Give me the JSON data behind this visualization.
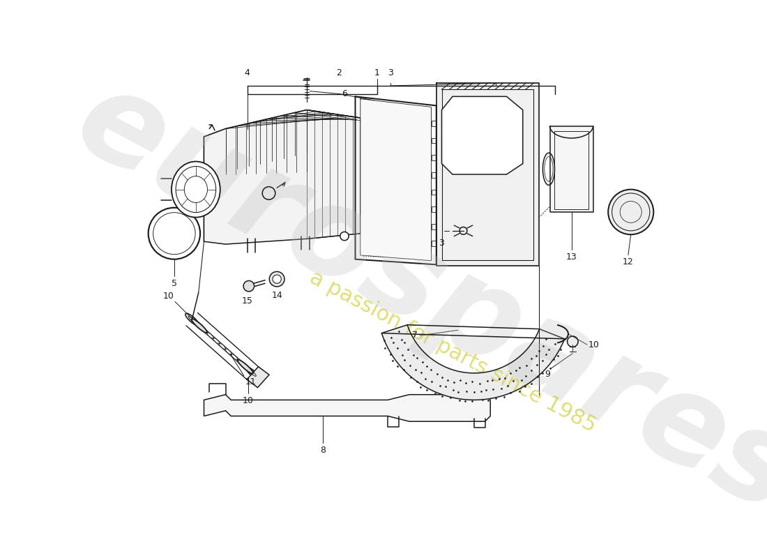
{
  "bg_color": "#ffffff",
  "line_color": "#1a1a1a",
  "lw": 1.1,
  "wm1": "eurospares",
  "wm2": "a passion for parts since 1985",
  "figsize": [
    11.0,
    8.0
  ],
  "dpi": 100
}
